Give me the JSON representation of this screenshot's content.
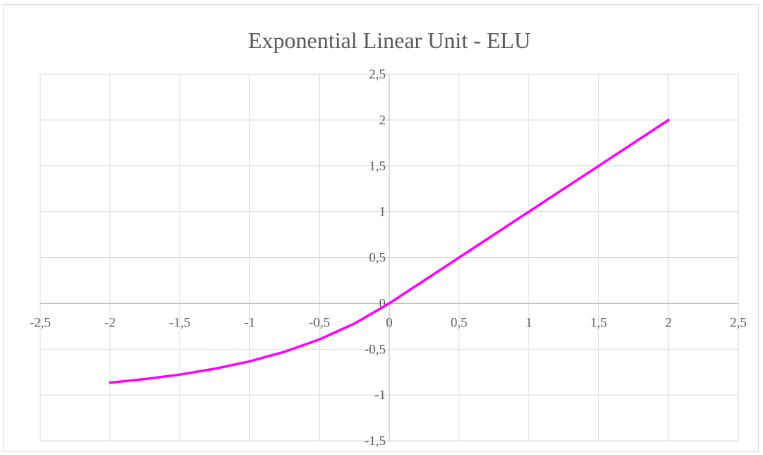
{
  "chart_data": {
    "type": "line",
    "title": "Exponential Linear Unit - ELU",
    "xlim": [
      -2.5,
      2.5
    ],
    "ylim": [
      -1.5,
      2.5
    ],
    "x_ticks": [
      -2.5,
      -2,
      -1.5,
      -1,
      -0.5,
      0,
      0.5,
      1,
      1.5,
      2,
      2.5
    ],
    "y_ticks": [
      -1.5,
      -1,
      -0.5,
      0,
      0.5,
      1,
      1.5,
      2,
      2.5
    ],
    "x_tick_labels": [
      "-2,5",
      "-2",
      "-1,5",
      "-1",
      "-0,5",
      "0",
      "0,5",
      "1",
      "1,5",
      "2",
      "2,5"
    ],
    "y_tick_labels": [
      "-1,5",
      "-1",
      "-0,5",
      "0",
      "0,5",
      "1",
      "1,5",
      "2",
      "2,5"
    ],
    "grid": true,
    "legend": "none",
    "series": [
      {
        "color": "#ff00ff",
        "x": [
          -2,
          -1.75,
          -1.5,
          -1.25,
          -1,
          -0.75,
          -0.5,
          -0.25,
          0,
          0.5,
          1,
          1.5,
          2
        ],
        "y": [
          -0.865,
          -0.826,
          -0.777,
          -0.713,
          -0.632,
          -0.528,
          -0.393,
          -0.221,
          0,
          0.5,
          1,
          1.5,
          2
        ]
      }
    ],
    "colors": {
      "grid": "#d9d9d9",
      "text": "#595959",
      "line": "#ff00ff"
    }
  }
}
